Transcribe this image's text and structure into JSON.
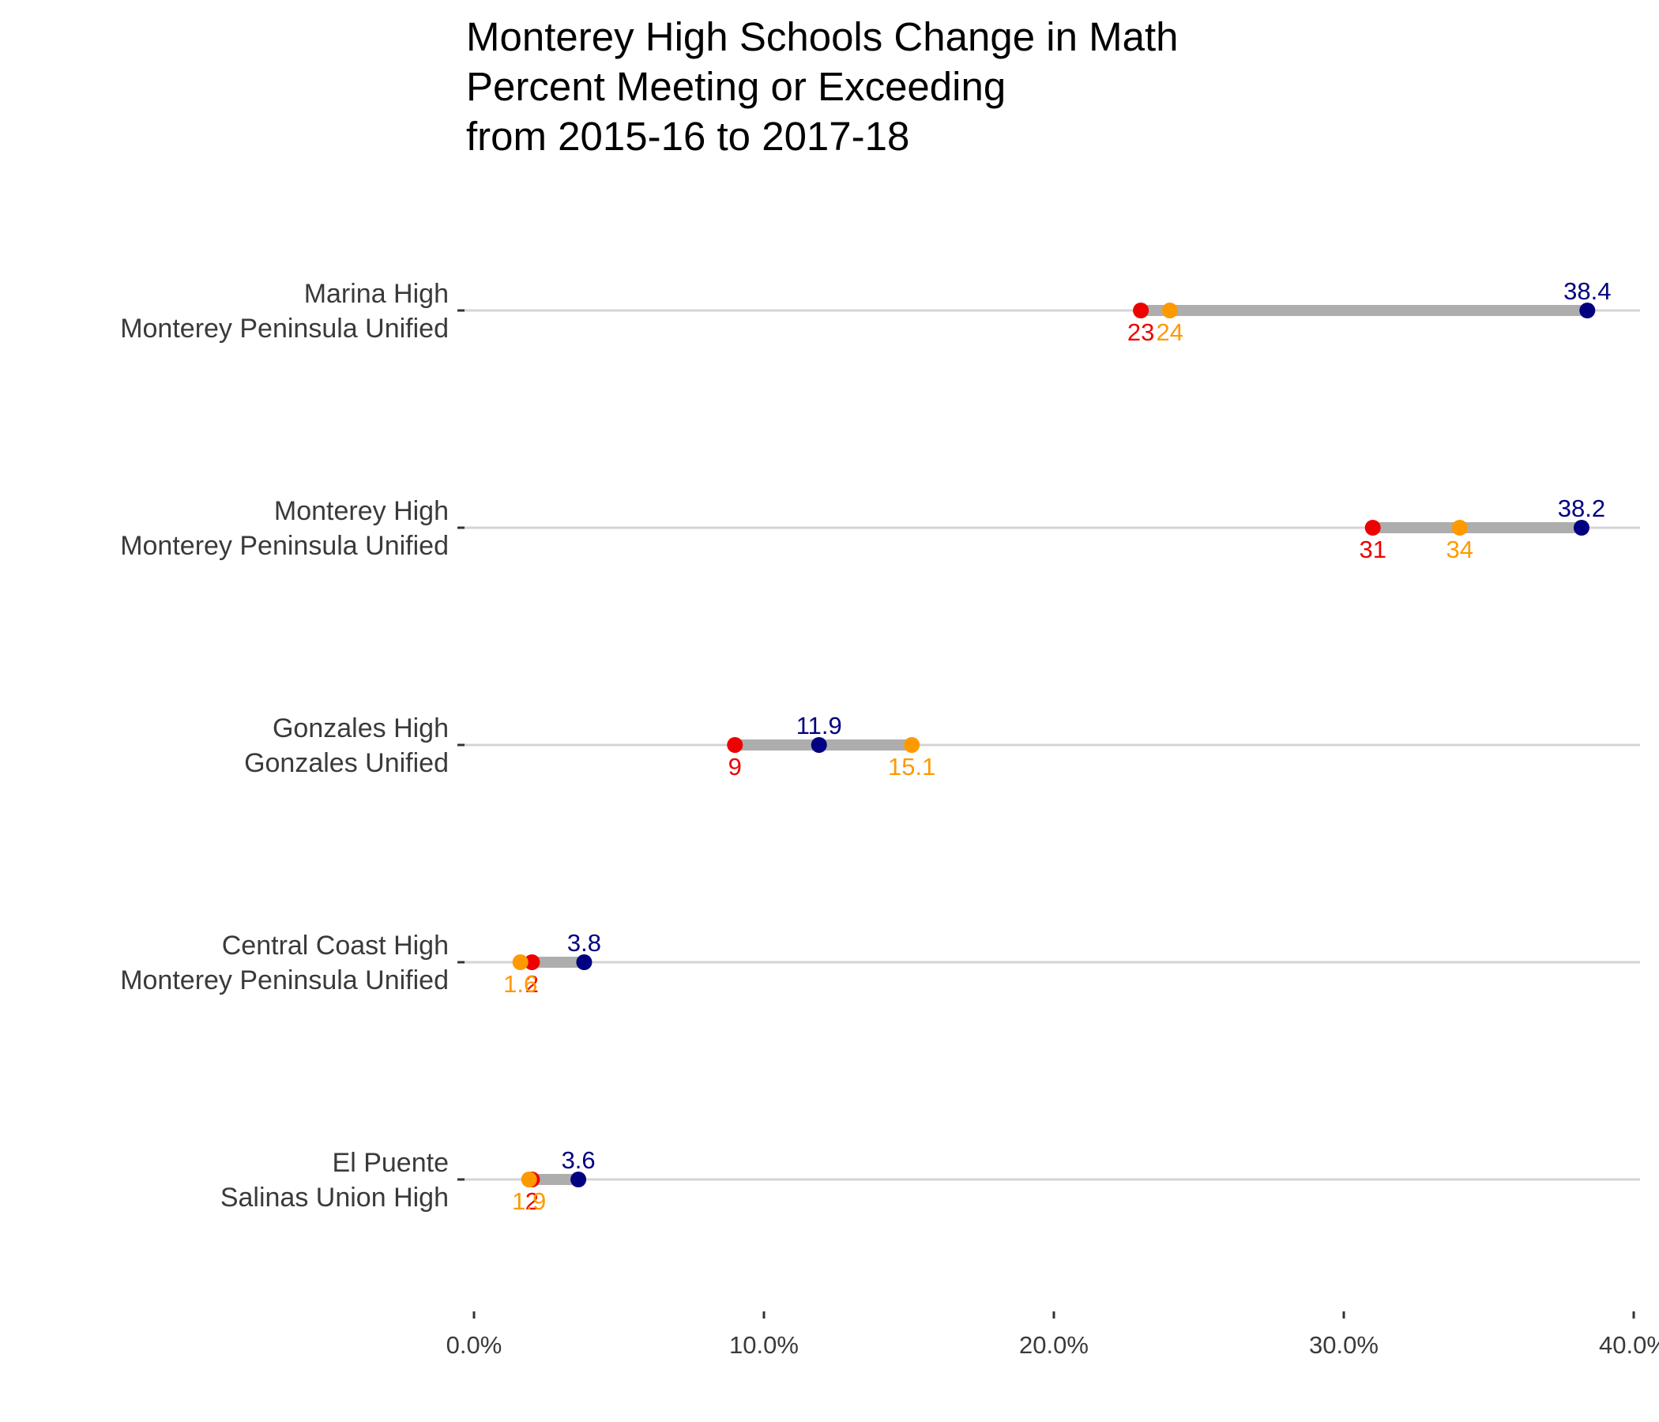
{
  "chart_data": {
    "type": "dumbbell",
    "title": [
      "Monterey High Schools Change in Math",
      "Percent Meeting or Exceeding",
      "from 2015-16 to 2017-18"
    ],
    "xlabel": "",
    "ylabel": "",
    "xlim": [
      0,
      40
    ],
    "x_ticks": [
      0,
      10,
      20,
      30,
      40
    ],
    "x_tick_labels": [
      "0.0%",
      "10.0%",
      "20.0%",
      "30.0%",
      "40.0%"
    ],
    "grid": "horizontal",
    "colors": {
      "red": "#ee0000",
      "orange": "#ff9900",
      "navy": "#000080",
      "segment": "#adadad",
      "gridline": "#d4d4d4"
    },
    "categories": [
      {
        "school": "Marina High",
        "district": "Monterey Peninsula Unified",
        "values": {
          "red": 23,
          "orange": 24,
          "navy": 38.4
        },
        "labels": {
          "red": "23",
          "orange": "24",
          "navy": "38.4"
        }
      },
      {
        "school": "Monterey High",
        "district": "Monterey Peninsula Unified",
        "values": {
          "red": 31,
          "orange": 34,
          "navy": 38.2
        },
        "labels": {
          "red": "31",
          "orange": "34",
          "navy": "38.2"
        }
      },
      {
        "school": "Gonzales High",
        "district": "Gonzales Unified",
        "values": {
          "red": 9,
          "orange": 15.1,
          "navy": 11.9
        },
        "labels": {
          "red": "9",
          "orange": "15.1",
          "navy": "11.9"
        }
      },
      {
        "school": "Central Coast High",
        "district": "Monterey Peninsula Unified",
        "values": {
          "red": 2,
          "orange": 1.6,
          "navy": 3.8
        },
        "labels": {
          "red": "2",
          "orange": "1.6",
          "navy": "3.8"
        }
      },
      {
        "school": "El Puente",
        "district": "Salinas Union High",
        "values": {
          "red": 2,
          "orange": 1.9,
          "navy": 3.6
        },
        "labels": {
          "red": "2",
          "orange": "1.9",
          "navy": "3.6"
        }
      }
    ]
  }
}
